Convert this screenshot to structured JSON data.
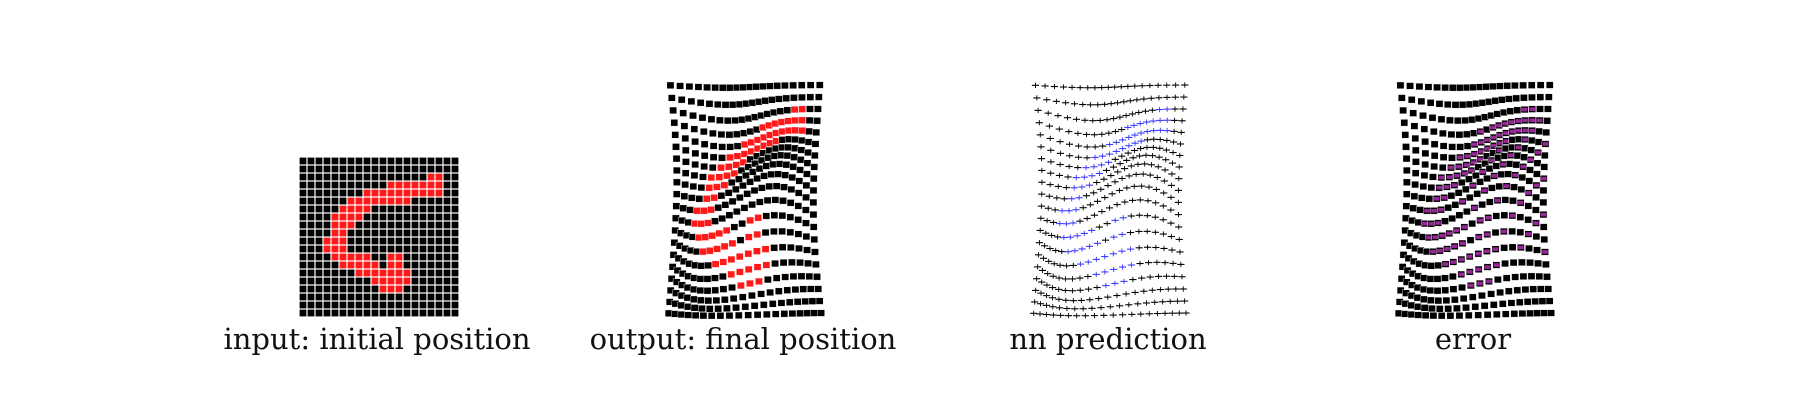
{
  "panels": [
    {
      "caption": "input: initial position",
      "kind": "input",
      "digit_color": "#ff1a1a",
      "cell_color": "#000000"
    },
    {
      "caption": "output: final position",
      "kind": "output",
      "digit_color": "#ff1a1a",
      "cell_color": "#000000"
    },
    {
      "caption": "nn prediction",
      "kind": "prediction",
      "digit_color": "#3b3bff",
      "cell_color": "#000000"
    },
    {
      "caption": "error",
      "kind": "error",
      "digit_color": "#cc33cc",
      "cell_color": "#000000"
    }
  ],
  "colors": {
    "background": "#ffffff",
    "grid": "#000000",
    "digit_input": "#ff1a1a",
    "digit_prediction": "#3b3bff",
    "error_highlight": "#cc33cc"
  }
}
